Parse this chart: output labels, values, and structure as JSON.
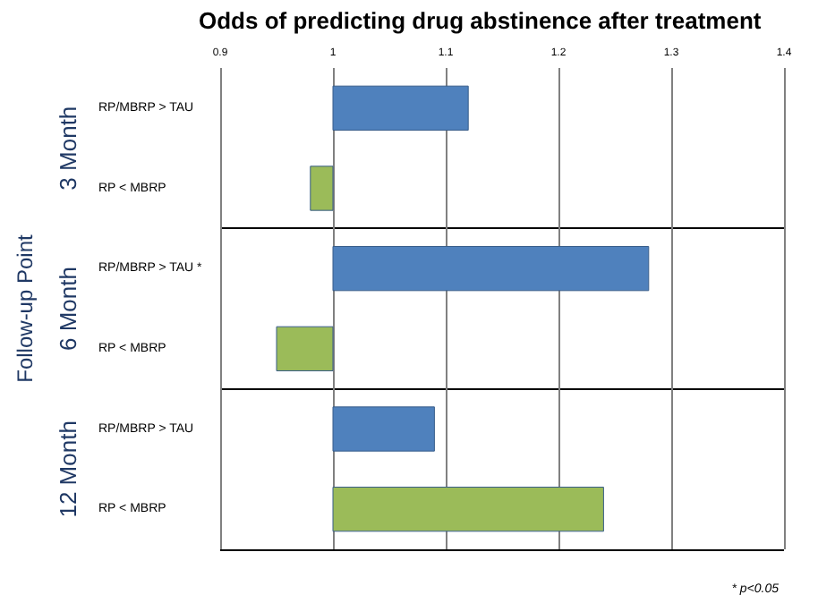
{
  "chart_data": {
    "type": "bar",
    "orientation": "horizontal",
    "title": "Odds of predicting drug abstinence after treatment",
    "ylabel": "Follow-up Point",
    "categories": [
      "RP/MBRP > TAU",
      "RP < MBRP",
      "RP/MBRP > TAU *",
      "RP < MBRP",
      "RP/MBRP > TAU",
      "RP < MBRP"
    ],
    "base": [
      1,
      1,
      1,
      1,
      1,
      1
    ],
    "values": [
      0.12,
      -0.02,
      0.28,
      -0.05,
      0.09,
      0.24
    ],
    "colors": [
      "#4f81bd",
      "#9bbb59",
      "#4f81bd",
      "#9bbb59",
      "#4f81bd",
      "#9bbb59"
    ],
    "xlim": [
      0.9,
      1.4
    ],
    "xticks": [
      0.9,
      1,
      1.1,
      1.2,
      1.3,
      1.4
    ],
    "grid": "x",
    "annotations": [
      "3 Month",
      "6 Month",
      "12 Month",
      "* p<0.05"
    ]
  }
}
